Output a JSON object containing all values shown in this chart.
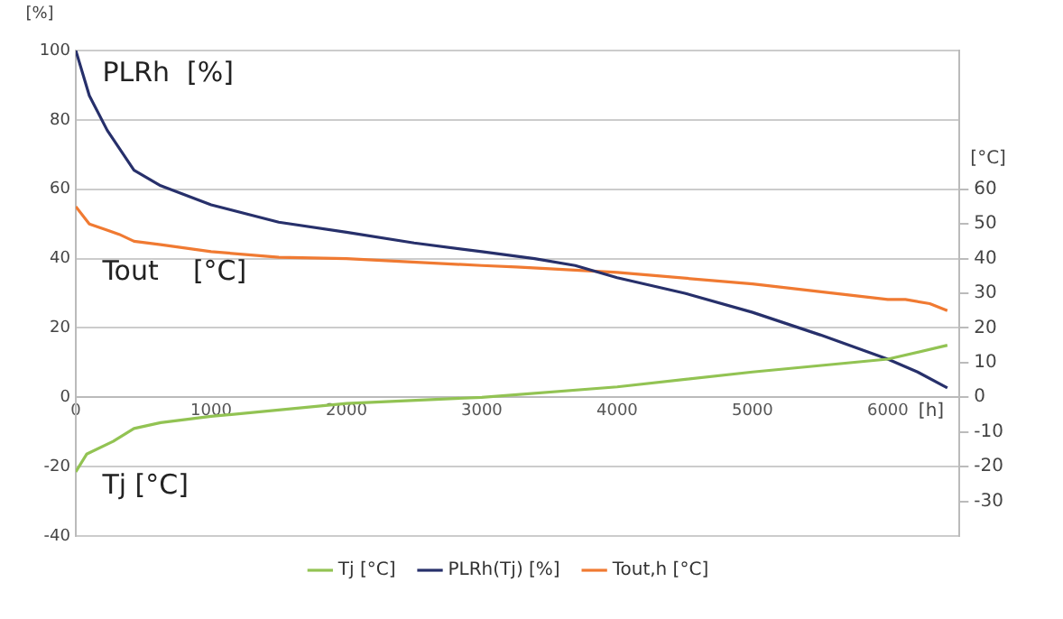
{
  "chart_data": {
    "type": "line",
    "xlabel": "[h]",
    "ylabel": "[%]",
    "y2label": "[°C]",
    "xlim": [
      0,
      6530
    ],
    "xticks": [
      0,
      1000,
      2000,
      3000,
      4000,
      5000,
      6000
    ],
    "ylim": [
      -40,
      100
    ],
    "yticks": [
      -40,
      -20,
      0,
      20,
      40,
      60,
      80,
      100
    ],
    "y2lim": [
      -40,
      100
    ],
    "y2ticks": [
      -30,
      -20,
      -10,
      0,
      10,
      20,
      30,
      40,
      50,
      60
    ],
    "grid": "y",
    "legend": "bottom",
    "marker": "none",
    "line_style": "solid",
    "annotations": [
      "PLRh  [%]",
      "Tout    [°C]",
      "Tj [°C]"
    ],
    "series": [
      {
        "name": "Tj [°C]",
        "color": "#92c353",
        "x": [
          0,
          80,
          276,
          430,
          627,
          1000,
          2000,
          3000,
          4000,
          5000,
          6000,
          6440
        ],
        "values": [
          -21.5,
          -16.4,
          -12.7,
          -9,
          -7.3,
          -5.5,
          -1.8,
          0,
          3,
          7.3,
          11,
          15
        ]
      },
      {
        "name": "PLRh(Tj) [%]",
        "color": "#27306b",
        "x": [
          0,
          100,
          232,
          430,
          627,
          1000,
          1500,
          2000,
          2500,
          3000,
          3390,
          3690,
          4000,
          4500,
          5000,
          5500,
          6000,
          6220,
          6440
        ],
        "values": [
          100,
          87,
          77,
          65.5,
          61,
          55.5,
          50.5,
          47.6,
          44.5,
          42,
          40,
          38,
          34.5,
          30,
          24.5,
          18,
          11,
          7.3,
          2.7
        ]
      },
      {
        "name": "Tout,h [°C]",
        "color": "#f07a32",
        "x": [
          0,
          100,
          320,
          430,
          627,
          1000,
          1500,
          2000,
          3000,
          3255,
          4000,
          5000,
          6000,
          6130,
          6310,
          6440
        ],
        "values": [
          55,
          50,
          47,
          45,
          44,
          42,
          40.4,
          40,
          38,
          37.6,
          36,
          32.7,
          28.2,
          28.2,
          27,
          25
        ]
      }
    ]
  }
}
